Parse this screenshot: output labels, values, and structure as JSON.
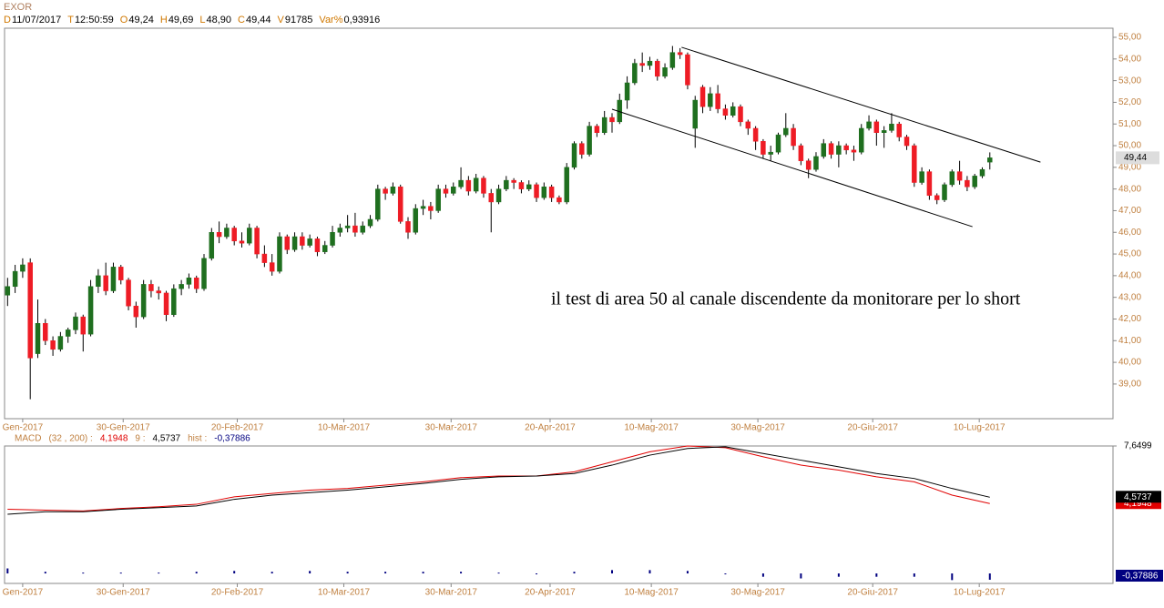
{
  "header": {
    "title": "EXOR",
    "items": [
      {
        "key": "D",
        "value": "11/07/2017"
      },
      {
        "key": "T",
        "value": "12:50:59"
      },
      {
        "key": "O",
        "value": "49,24"
      },
      {
        "key": "H",
        "value": "49,69"
      },
      {
        "key": "L",
        "value": "48,90"
      },
      {
        "key": "C",
        "value": "49,44"
      },
      {
        "key": "V",
        "value": "91785"
      },
      {
        "key": "Var%",
        "value": "0,93916"
      }
    ]
  },
  "chart_data": {
    "type": "candlestick",
    "up_color": "#1f6f1f",
    "down_color": "#ee1c25",
    "xlim": [
      -0.4,
      146.3
    ],
    "xticks": [
      {
        "value": 2,
        "label": "Gen-2017"
      },
      {
        "value": 15.3,
        "label": "30-Gen-2017"
      },
      {
        "value": 30.4,
        "label": "20-Feb-2017"
      },
      {
        "value": 44.5,
        "label": "10-Mar-2017"
      },
      {
        "value": 58.7,
        "label": "30-Mar-2017"
      },
      {
        "value": 71.8,
        "label": "20-Apr-2017"
      },
      {
        "value": 85.2,
        "label": "10-Mag-2017"
      },
      {
        "value": 99.3,
        "label": "30-Mag-2017"
      },
      {
        "value": 114.5,
        "label": "20-Giu-2017"
      },
      {
        "value": 128.6,
        "label": "10-Lug-2017"
      }
    ],
    "ylim": [
      37.4,
      55.42
    ],
    "yticks": [
      {
        "value": 39,
        "label": "39,00"
      },
      {
        "value": 40,
        "label": "40,00"
      },
      {
        "value": 41,
        "label": "41,00"
      },
      {
        "value": 42,
        "label": "42,00"
      },
      {
        "value": 43,
        "label": "43,00"
      },
      {
        "value": 44,
        "label": "44,00"
      },
      {
        "value": 45,
        "label": "45,00"
      },
      {
        "value": 46,
        "label": "46,00"
      },
      {
        "value": 47,
        "label": "47,00"
      },
      {
        "value": 48,
        "label": "48,00"
      },
      {
        "value": 49,
        "label": "49,00"
      },
      {
        "value": 50,
        "label": "50,00"
      },
      {
        "value": 51,
        "label": "51,00"
      },
      {
        "value": 52,
        "label": "52,00"
      },
      {
        "value": 53,
        "label": "53,00"
      },
      {
        "value": 54,
        "label": "54,00"
      },
      {
        "value": 55,
        "label": "55,00"
      }
    ],
    "last_price": {
      "value": 49.44,
      "label": "49,44"
    },
    "annotation": "il test di area 50 al canale discendente da monitorare per lo short",
    "trendlines": [
      {
        "x": [
          89.2,
          136.7
        ],
        "y": [
          54.54,
          49.24
        ]
      },
      {
        "x": [
          80,
          127.7
        ],
        "y": [
          51.68,
          46.26
        ]
      }
    ],
    "ohlc": [
      [
        43.1,
        43.9,
        42.6,
        43.5
      ],
      [
        43.5,
        44.5,
        43.2,
        44.2
      ],
      [
        44.2,
        44.8,
        43.9,
        44.5
      ],
      [
        44.6,
        44.8,
        38.3,
        40.2
      ],
      [
        40.4,
        42.9,
        40.2,
        41.8
      ],
      [
        41.8,
        42.0,
        40.8,
        41.0
      ],
      [
        41.0,
        41.2,
        40.3,
        40.6
      ],
      [
        40.6,
        41.4,
        40.5,
        41.2
      ],
      [
        41.2,
        41.6,
        40.9,
        41.5
      ],
      [
        41.5,
        42.3,
        41.3,
        42.1
      ],
      [
        42.1,
        42.2,
        40.5,
        41.3
      ],
      [
        41.3,
        43.8,
        41.2,
        43.5
      ],
      [
        43.5,
        44.3,
        43.2,
        44.0
      ],
      [
        44.0,
        44.6,
        43.1,
        43.3
      ],
      [
        43.3,
        44.6,
        43.2,
        44.4
      ],
      [
        44.4,
        44.5,
        43.6,
        43.8
      ],
      [
        43.8,
        43.9,
        42.4,
        42.6
      ],
      [
        42.6,
        42.8,
        41.6,
        42.1
      ],
      [
        42.1,
        43.8,
        42.0,
        43.6
      ],
      [
        43.6,
        43.8,
        43.0,
        43.3
      ],
      [
        43.3,
        43.5,
        42.9,
        43.2
      ],
      [
        43.2,
        43.3,
        41.9,
        42.2
      ],
      [
        42.2,
        43.6,
        42.1,
        43.4
      ],
      [
        43.4,
        43.8,
        43.1,
        43.6
      ],
      [
        43.6,
        44.1,
        43.4,
        43.9
      ],
      [
        43.9,
        44.0,
        43.2,
        43.4
      ],
      [
        43.4,
        45.0,
        43.3,
        44.8
      ],
      [
        44.8,
        46.2,
        44.7,
        46.0
      ],
      [
        46.0,
        46.5,
        45.5,
        45.8
      ],
      [
        45.8,
        46.4,
        45.7,
        46.2
      ],
      [
        46.2,
        46.3,
        45.4,
        45.6
      ],
      [
        45.6,
        46.0,
        45.3,
        45.5
      ],
      [
        45.5,
        46.4,
        45.4,
        46.2
      ],
      [
        46.2,
        46.3,
        44.8,
        45.0
      ],
      [
        45.0,
        45.4,
        44.4,
        44.6
      ],
      [
        44.6,
        45.0,
        44.0,
        44.2
      ],
      [
        44.2,
        46.0,
        44.1,
        45.8
      ],
      [
        45.8,
        45.9,
        45.0,
        45.2
      ],
      [
        45.2,
        46.0,
        45.1,
        45.8
      ],
      [
        45.8,
        46.0,
        45.2,
        45.4
      ],
      [
        45.4,
        45.9,
        45.3,
        45.7
      ],
      [
        45.7,
        45.8,
        44.9,
        45.1
      ],
      [
        45.1,
        45.6,
        45.0,
        45.4
      ],
      [
        45.4,
        46.3,
        45.3,
        46.0
      ],
      [
        46.0,
        46.4,
        45.8,
        46.2
      ],
      [
        46.2,
        46.8,
        46.0,
        46.3
      ],
      [
        46.3,
        46.9,
        45.8,
        46.0
      ],
      [
        46.0,
        46.5,
        45.9,
        46.3
      ],
      [
        46.3,
        46.8,
        46.2,
        46.6
      ],
      [
        46.6,
        48.2,
        46.5,
        48.0
      ],
      [
        48.0,
        48.1,
        47.5,
        47.8
      ],
      [
        47.8,
        48.3,
        47.7,
        48.1
      ],
      [
        48.1,
        48.2,
        46.4,
        46.5
      ],
      [
        46.5,
        46.7,
        45.7,
        46.0
      ],
      [
        46.0,
        47.3,
        45.9,
        47.1
      ],
      [
        47.1,
        47.5,
        46.8,
        47.2
      ],
      [
        47.2,
        47.4,
        46.6,
        47.0
      ],
      [
        47.0,
        48.2,
        46.9,
        48.0
      ],
      [
        48.0,
        48.2,
        47.6,
        47.8
      ],
      [
        47.8,
        48.3,
        47.7,
        48.1
      ],
      [
        48.1,
        49.0,
        48.0,
        48.4
      ],
      [
        48.4,
        48.6,
        47.7,
        47.9
      ],
      [
        47.9,
        48.7,
        47.8,
        48.5
      ],
      [
        48.5,
        48.6,
        47.6,
        47.8
      ],
      [
        47.8,
        48.0,
        46.0,
        47.4
      ],
      [
        47.4,
        48.2,
        47.3,
        48.0
      ],
      [
        48.0,
        48.6,
        47.9,
        48.4
      ],
      [
        48.4,
        48.5,
        48.0,
        48.3
      ],
      [
        48.3,
        48.4,
        47.8,
        48.0
      ],
      [
        48.0,
        48.4,
        47.9,
        48.2
      ],
      [
        48.2,
        48.3,
        47.4,
        47.6
      ],
      [
        47.6,
        48.3,
        47.5,
        48.1
      ],
      [
        48.1,
        48.2,
        47.4,
        47.6
      ],
      [
        47.6,
        47.7,
        47.3,
        47.4
      ],
      [
        47.4,
        49.2,
        47.3,
        49.0
      ],
      [
        49.0,
        50.2,
        48.9,
        50.1
      ],
      [
        50.1,
        50.2,
        49.4,
        49.6
      ],
      [
        49.6,
        51.1,
        49.5,
        50.9
      ],
      [
        50.9,
        51.0,
        50.4,
        50.6
      ],
      [
        50.6,
        51.6,
        50.5,
        51.3
      ],
      [
        51.3,
        51.5,
        50.6,
        51.1
      ],
      [
        51.1,
        52.4,
        51.0,
        52.1
      ],
      [
        52.1,
        53.2,
        51.7,
        52.9
      ],
      [
        52.9,
        54.0,
        52.8,
        53.8
      ],
      [
        53.8,
        54.3,
        53.4,
        53.7
      ],
      [
        53.7,
        54.1,
        53.5,
        53.9
      ],
      [
        53.9,
        54.0,
        53.0,
        53.2
      ],
      [
        53.2,
        53.8,
        53.1,
        53.6
      ],
      [
        53.6,
        54.6,
        53.5,
        54.3
      ],
      [
        54.3,
        54.5,
        54.0,
        54.2
      ],
      [
        54.2,
        54.3,
        52.6,
        52.8
      ],
      [
        50.8,
        52.3,
        49.9,
        52.1
      ],
      [
        52.7,
        52.8,
        51.5,
        51.8
      ],
      [
        51.8,
        52.7,
        51.6,
        52.4
      ],
      [
        52.4,
        52.8,
        51.5,
        51.7
      ],
      [
        51.7,
        51.9,
        51.2,
        51.4
      ],
      [
        51.4,
        52.0,
        51.3,
        51.8
      ],
      [
        51.8,
        51.9,
        50.9,
        51.1
      ],
      [
        51.1,
        51.2,
        50.5,
        50.8
      ],
      [
        50.8,
        50.9,
        49.8,
        50.2
      ],
      [
        50.2,
        50.3,
        49.4,
        49.6
      ],
      [
        49.6,
        50.0,
        49.3,
        49.7
      ],
      [
        49.7,
        50.6,
        49.6,
        50.5
      ],
      [
        50.5,
        51.5,
        50.4,
        50.8
      ],
      [
        50.8,
        51.0,
        49.8,
        50.0
      ],
      [
        50.0,
        50.1,
        49.1,
        49.3
      ],
      [
        49.3,
        49.4,
        48.5,
        48.9
      ],
      [
        48.9,
        49.7,
        48.8,
        49.5
      ],
      [
        49.5,
        50.3,
        49.4,
        50.1
      ],
      [
        50.1,
        50.2,
        49.4,
        49.6
      ],
      [
        49.6,
        50.2,
        49.0,
        50.0
      ],
      [
        50.0,
        50.1,
        49.6,
        49.8
      ],
      [
        49.8,
        50.0,
        49.3,
        49.7
      ],
      [
        49.7,
        51.0,
        49.6,
        50.8
      ],
      [
        50.8,
        51.4,
        50.7,
        51.1
      ],
      [
        51.1,
        51.2,
        50.0,
        50.6
      ],
      [
        50.6,
        50.9,
        49.9,
        50.7
      ],
      [
        50.7,
        51.5,
        50.6,
        51.0
      ],
      [
        51.0,
        51.1,
        50.2,
        50.4
      ],
      [
        50.4,
        50.5,
        49.8,
        50.0
      ],
      [
        50.0,
        50.1,
        48.1,
        48.3
      ],
      [
        48.3,
        49.0,
        48.2,
        48.8
      ],
      [
        48.8,
        48.9,
        47.5,
        47.7
      ],
      [
        47.7,
        47.8,
        47.3,
        47.5
      ],
      [
        47.5,
        48.3,
        47.4,
        48.2
      ],
      [
        48.2,
        48.9,
        48.1,
        48.8
      ],
      [
        48.8,
        49.3,
        48.2,
        48.4
      ],
      [
        48.4,
        48.6,
        47.9,
        48.1
      ],
      [
        48.1,
        48.7,
        48.0,
        48.6
      ],
      [
        48.6,
        49.0,
        48.5,
        48.9
      ],
      [
        49.24,
        49.69,
        48.9,
        49.44
      ]
    ],
    "macd": {
      "title": "MACD",
      "y2lim": [
        -0.6,
        7.65
      ],
      "y2ticks": [
        {
          "value": 7.6499,
          "label": "7,6499"
        }
      ],
      "x": [
        0,
        5,
        10,
        15,
        20,
        25,
        30,
        35,
        40,
        45,
        50,
        55,
        60,
        65,
        70,
        75,
        80,
        85,
        90,
        95,
        100,
        105,
        110,
        115,
        120,
        125,
        130
      ],
      "series": [
        {
          "name": "(32 , 200) :",
          "color": "#e00000",
          "last_label": "4,1948",
          "values": [
            3.85,
            3.8,
            3.75,
            3.9,
            4.0,
            4.15,
            4.6,
            4.8,
            5.0,
            5.1,
            5.3,
            5.5,
            5.75,
            5.85,
            5.85,
            6.1,
            6.7,
            7.3,
            7.65,
            7.55,
            7.0,
            6.5,
            6.2,
            5.8,
            5.5,
            4.7,
            4.1948
          ]
        },
        {
          "name": "9 :",
          "color": "#000000",
          "last_label": "4,5737",
          "values": [
            3.55,
            3.7,
            3.7,
            3.85,
            3.95,
            4.05,
            4.45,
            4.7,
            4.85,
            5.0,
            5.2,
            5.4,
            5.65,
            5.8,
            5.85,
            6.0,
            6.5,
            7.1,
            7.5,
            7.6,
            7.2,
            6.8,
            6.4,
            6.0,
            5.7,
            5.1,
            4.5737
          ]
        }
      ],
      "hist": {
        "name": "hist :",
        "color": "#000080",
        "last_label": "-0,37886",
        "values": [
          0.3,
          0.1,
          0.05,
          0.05,
          0.05,
          0.1,
          0.15,
          0.1,
          0.15,
          0.1,
          0.1,
          0.1,
          0.1,
          0.05,
          0.0,
          0.1,
          0.2,
          0.2,
          0.15,
          -0.05,
          -0.2,
          -0.3,
          -0.2,
          -0.2,
          -0.2,
          -0.4,
          -0.37886
        ]
      }
    }
  }
}
